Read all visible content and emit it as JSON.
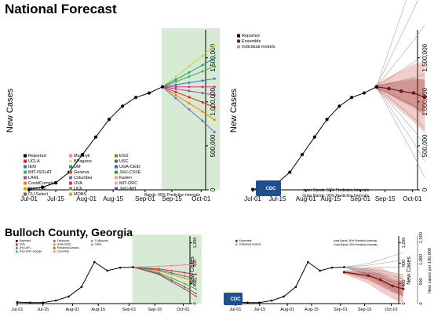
{
  "titles": {
    "national": "National Forecast",
    "county": "Bulloch County, Georgia"
  },
  "ylabel": "New Cases",
  "ylabel_right": "New cases per 100,000",
  "cdc_label": "CDC",
  "chart_data": [
    {
      "type": "line",
      "panel": "national-models",
      "x": [
        "Jul-01",
        "Jul-08",
        "Jul-15",
        "Jul-22",
        "Jul-29",
        "Aug-05",
        "Aug-12",
        "Aug-19",
        "Aug-26",
        "Sep-02",
        "Sep-09"
      ],
      "values": [
        5000,
        30000,
        80000,
        200000,
        400000,
        600000,
        800000,
        950000,
        1050000,
        1100000,
        1170000
      ],
      "xticks": [
        "Jul-01",
        "Jul-15",
        "Aug-01",
        "Aug-15",
        "Sep-01",
        "Sep-15",
        "Oct-01"
      ],
      "yticks": [
        "0",
        "500,000",
        "1,000,000",
        "1,500,000"
      ],
      "ylim": [
        0,
        1800000
      ],
      "legend": [
        "Reported",
        "UCLA",
        "IEM",
        "MIT-ISOLAT",
        "LANL",
        "CovidComplete",
        "DDS-Lab",
        "CU-Select",
        "Masaryk",
        "BPagano",
        "UM",
        "Geneva",
        "Columbia",
        "UVA",
        "UCF",
        "MOBS",
        "ESG",
        "USC",
        "UGA-CEID",
        "JHU-CSSE",
        "Karlen",
        "MIT-ORC",
        "JHU-APL"
      ],
      "legend_colors": [
        "#000000",
        "#e41a1c",
        "#377eb8",
        "#4daf4a",
        "#984ea3",
        "#ff7f00",
        "#b8b800",
        "#a65628",
        "#f781bf",
        "#f0e68c",
        "#1b9e77",
        "#d95f02",
        "#7570b3",
        "#e7298a",
        "#66a61e",
        "#e6ab02",
        "#a6761d",
        "#666666",
        "#1f78b4",
        "#33a02c",
        "#fb9a99",
        "#cab2d6",
        "#6a3d9a"
      ],
      "note": "Bands: 95% Prediction Intervals"
    },
    {
      "type": "line",
      "panel": "national-ensemble",
      "x": [
        "Jul-01",
        "Jul-08",
        "Jul-15",
        "Jul-22",
        "Jul-29",
        "Aug-05",
        "Aug-12",
        "Aug-19",
        "Aug-26",
        "Sep-02",
        "Sep-09"
      ],
      "values": [
        5000,
        30000,
        80000,
        200000,
        400000,
        600000,
        800000,
        950000,
        1050000,
        1100000,
        1170000
      ],
      "ensemble": [
        1170000,
        1150000,
        1120000,
        1100000,
        1050000
      ],
      "xticks": [
        "Jul-01",
        "Jul-15",
        "Aug-01",
        "Aug-15",
        "Sep-01",
        "Sep-15",
        "Oct-01"
      ],
      "yticks": [
        "0",
        "500,000",
        "1,000,000",
        "1,500,000"
      ],
      "ylim": [
        0,
        1800000
      ],
      "legend": [
        "Reported",
        "Ensemble",
        "Individual models"
      ],
      "legend_colors": [
        "#000000",
        "#8b1a1a",
        "#a9a9a9"
      ],
      "notes": [
        "Inner Bands: 50% Prediction Intervals",
        "Outer Bands: 95% Prediction Intervals"
      ]
    },
    {
      "type": "line",
      "panel": "county-models",
      "x": [
        "Jul-01",
        "Jul-08",
        "Jul-15",
        "Jul-22",
        "Jul-29",
        "Aug-05",
        "Aug-12",
        "Aug-19",
        "Aug-26",
        "Sep-02"
      ],
      "values": [
        30,
        20,
        20,
        60,
        140,
        330,
        820,
        650,
        710,
        720
      ],
      "xticks": [
        "Jul-01",
        "Jul-15",
        "Aug-01",
        "Aug-15",
        "Sep-01",
        "Sep-15",
        "Oct-01"
      ],
      "yticks": [
        "0",
        "400",
        "800",
        "1,200"
      ],
      "ylim": [
        0,
        1300
      ],
      "legend": [
        "Reported",
        "UVA",
        "JHU-APL",
        "JHU-UNC-Google",
        "Facebook",
        "UGA-CEID",
        "PandemicCentral",
        "Columbia",
        "CUBoulder",
        "LANL"
      ],
      "legend_colors": [
        "#000000",
        "#e41a1c",
        "#377eb8",
        "#4daf4a",
        "#984ea3",
        "#ff7f00",
        "#a65628",
        "#f781bf",
        "#999999",
        "#66c2a5"
      ]
    },
    {
      "type": "line",
      "panel": "county-ensemble",
      "x": [
        "Jul-01",
        "Jul-08",
        "Jul-15",
        "Jul-22",
        "Jul-29",
        "Aug-05",
        "Aug-12",
        "Aug-19",
        "Aug-26",
        "Sep-02"
      ],
      "values": [
        30,
        20,
        20,
        60,
        140,
        330,
        820,
        650,
        710,
        720
      ],
      "ensemble": [
        620,
        550,
        470,
        350,
        290
      ],
      "xticks": [
        "Jul-01",
        "Jul-15",
        "Aug-01",
        "Aug-15",
        "Sep-01",
        "Sep-15",
        "Oct-01"
      ],
      "yticks": [
        "0",
        "400",
        "800",
        "1,200"
      ],
      "yticks_right": [
        "0",
        "500",
        "1,000",
        "1,500"
      ],
      "ylim": [
        0,
        1300
      ],
      "legend": [
        "Ensemble",
        "Individual models"
      ],
      "legend_colors": [
        "#8b1a1a",
        "#a9a9a9"
      ],
      "notes": [
        "Inner Bands: 50% Prediction Intervals",
        "Outer Bands: 95% Prediction Intervals"
      ]
    }
  ]
}
